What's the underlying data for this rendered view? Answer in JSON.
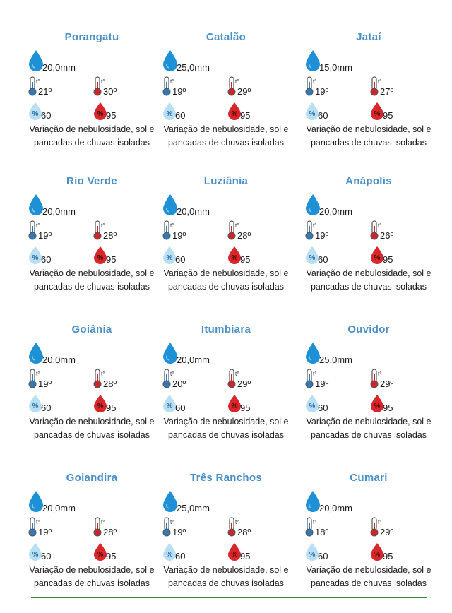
{
  "colors": {
    "city_name": "#4a90c8",
    "rain_drop": "#1e90d6",
    "thermo_cold": "#2f7ab8",
    "thermo_hot": "#c8282c",
    "humidity_low": "#b9dff2",
    "humidity_high": "#d9262b",
    "divider": "#2e8b3a"
  },
  "icons": {
    "rain": "rain-drop-icon",
    "temp_min": "thermometer-cold-icon",
    "temp_max": "thermometer-hot-icon",
    "humidity_min": "humidity-low-icon",
    "humidity_max": "humidity-high-icon"
  },
  "cities": [
    {
      "name": "Porangatu",
      "rain": "20,0mm",
      "tmin": "21º",
      "tmax": "30º",
      "hmin": "60",
      "hmax": "95",
      "desc": "Variação de nebulosidade, sol e pancadas de chuvas isoladas"
    },
    {
      "name": "Catalão",
      "rain": "25,0mm",
      "tmin": "19º",
      "tmax": "29º",
      "hmin": "60",
      "hmax": "95",
      "desc": "Variação de nebulosidade, sol e pancadas de chuvas isoladas"
    },
    {
      "name": "Jataí",
      "rain": "15,0mm",
      "tmin": "19º",
      "tmax": "27º",
      "hmin": "60",
      "hmax": "95",
      "desc": "Variação de nebulosidade, sol e pancadas de chuvas isoladas"
    },
    {
      "name": "Rio Verde",
      "rain": "20,0mm",
      "tmin": "19º",
      "tmax": "28º",
      "hmin": "60",
      "hmax": "95",
      "desc": "Variação de nebulosidade, sol e pancadas de chuvas isoladas"
    },
    {
      "name": "Luziânia",
      "rain": "20,0mm",
      "tmin": "19º",
      "tmax": "28º",
      "hmin": "60",
      "hmax": "95",
      "desc": "Variação de nebulosidade, sol e pancadas de chuvas isoladas"
    },
    {
      "name": "Anápolis",
      "rain": "20,0mm",
      "tmin": "19º",
      "tmax": "26º",
      "hmin": "60",
      "hmax": "95",
      "desc": "Variação de nebulosidade, sol e pancadas de chuvas isoladas"
    },
    {
      "name": "Goiânia",
      "rain": "20,0mm",
      "tmin": "19º",
      "tmax": "28º",
      "hmin": "60",
      "hmax": "95",
      "desc": "Variação de nebulosidade, sol e pancadas de chuvas isoladas"
    },
    {
      "name": "Itumbiara",
      "rain": "20,0mm",
      "tmin": "20º",
      "tmax": "29º",
      "hmin": "60",
      "hmax": "95",
      "desc": "Variação de nebulosidade, sol e pancadas de chuvas isoladas"
    },
    {
      "name": "Ouvidor",
      "rain": "25,0mm",
      "tmin": "19º",
      "tmax": "29º",
      "hmin": "60",
      "hmax": "95",
      "desc": "Variação de nebulosidade, sol e pancadas de chuvas isoladas"
    },
    {
      "name": "Goiandira",
      "rain": "20,0mm",
      "tmin": "19º",
      "tmax": "28º",
      "hmin": "60",
      "hmax": "95",
      "desc": "Variação de nebulosidade, sol e pancadas de chuvas isoladas"
    },
    {
      "name": "Três Ranchos",
      "rain": "25,0mm",
      "tmin": "19º",
      "tmax": "28º",
      "hmin": "60",
      "hmax": "95",
      "desc": "Variação de nebulosidade, sol e pancadas de chuvas isoladas"
    },
    {
      "name": "Cumari",
      "rain": "20,0mm",
      "tmin": "18º",
      "tmax": "29º",
      "hmin": "60",
      "hmax": "95",
      "desc": "Variação de nebulosidade, sol e pancadas de chuvas isoladas"
    }
  ]
}
